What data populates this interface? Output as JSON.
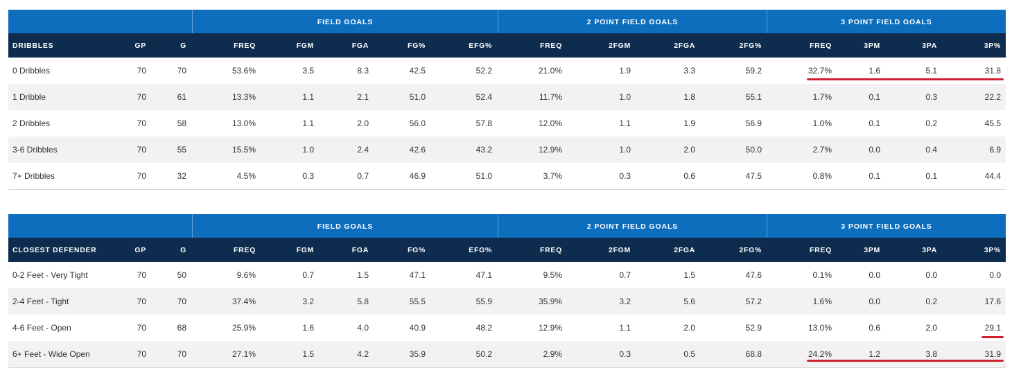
{
  "group_headers": [
    "FIELD GOALS",
    "2 POINT FIELD GOALS",
    "3 POINT FIELD GOALS"
  ],
  "column_headers": [
    "GP",
    "G",
    "FREQ",
    "FGM",
    "FGA",
    "FG%",
    "EFG%",
    "FREQ",
    "2FGM",
    "2FGA",
    "2FG%",
    "FREQ",
    "3PM",
    "3PA",
    "3P%"
  ],
  "dribbles": {
    "label": "DRIBBLES",
    "rows": [
      [
        "0 Dribbles",
        "70",
        "70",
        "53.6%",
        "3.5",
        "8.3",
        "42.5",
        "52.2",
        "21.0%",
        "1.9",
        "3.3",
        "59.2",
        "32.7%",
        "1.6",
        "5.1",
        "31.8"
      ],
      [
        "1 Dribble",
        "70",
        "61",
        "13.3%",
        "1.1",
        "2.1",
        "51.0",
        "52.4",
        "11.7%",
        "1.0",
        "1.8",
        "55.1",
        "1.7%",
        "0.1",
        "0.3",
        "22.2"
      ],
      [
        "2 Dribbles",
        "70",
        "58",
        "13.0%",
        "1.1",
        "2.0",
        "56.0",
        "57.8",
        "12.0%",
        "1.1",
        "1.9",
        "56.9",
        "1.0%",
        "0.1",
        "0.2",
        "45.5"
      ],
      [
        "3-6 Dribbles",
        "70",
        "55",
        "15.5%",
        "1.0",
        "2.4",
        "42.6",
        "43.2",
        "12.9%",
        "1.0",
        "2.0",
        "50.0",
        "2.7%",
        "0.0",
        "0.4",
        "6.9"
      ],
      [
        "7+ Dribbles",
        "70",
        "32",
        "4.5%",
        "0.3",
        "0.7",
        "46.9",
        "51.0",
        "3.7%",
        "0.3",
        "0.6",
        "47.5",
        "0.8%",
        "0.1",
        "0.1",
        "44.4"
      ]
    ]
  },
  "closest_defender": {
    "label": "CLOSEST DEFENDER",
    "rows": [
      [
        "0-2 Feet - Very Tight",
        "70",
        "50",
        "9.6%",
        "0.7",
        "1.5",
        "47.1",
        "47.1",
        "9.5%",
        "0.7",
        "1.5",
        "47.6",
        "0.1%",
        "0.0",
        "0.0",
        "0.0"
      ],
      [
        "2-4 Feet - Tight",
        "70",
        "70",
        "37.4%",
        "3.2",
        "5.8",
        "55.5",
        "55.9",
        "35.9%",
        "3.2",
        "5.6",
        "57.2",
        "1.6%",
        "0.0",
        "0.2",
        "17.6"
      ],
      [
        "4-6 Feet - Open",
        "70",
        "68",
        "25.9%",
        "1.6",
        "4.0",
        "40.9",
        "48.2",
        "12.9%",
        "1.1",
        "2.0",
        "52.9",
        "13.0%",
        "0.6",
        "2.0",
        "29.1"
      ],
      [
        "6+ Feet - Wide Open",
        "70",
        "70",
        "27.1%",
        "1.5",
        "4.2",
        "35.9",
        "50.2",
        "2.9%",
        "0.3",
        "0.5",
        "68.8",
        "24.2%",
        "1.2",
        "3.8",
        "31.9"
      ]
    ]
  },
  "colors": {
    "group_header_bg": "#0d6ebd",
    "column_header_bg": "#0d2c4e",
    "alt_row_bg": "#f2f2f2",
    "annotation_underline": "#d0202f"
  }
}
